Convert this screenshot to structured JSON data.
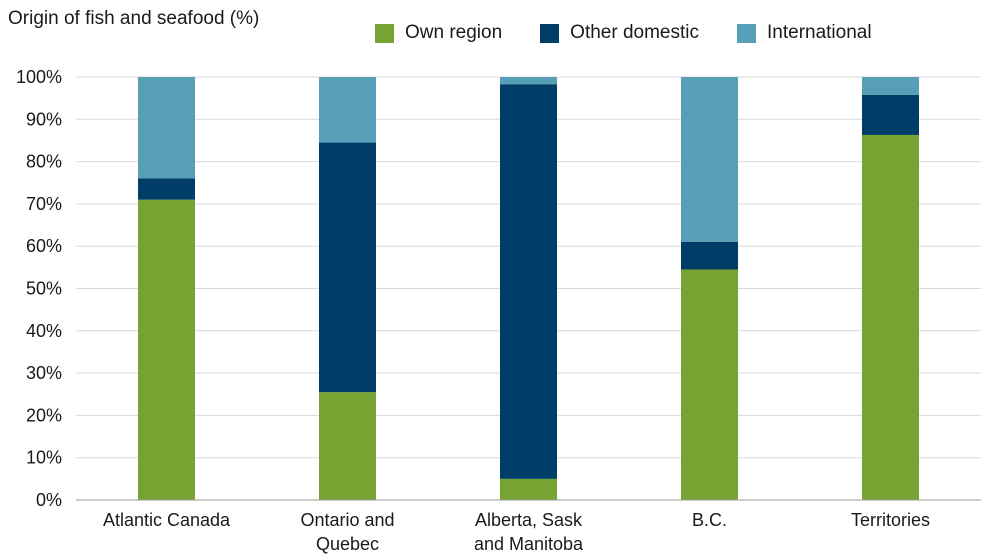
{
  "chart_data": {
    "type": "bar",
    "stacked": true,
    "title": "Origin of fish and seafood (%)",
    "categories": [
      [
        "Atlantic Canada"
      ],
      [
        "Ontario and",
        "Quebec"
      ],
      [
        "Alberta, Sask",
        "and Manitoba"
      ],
      [
        "B.C."
      ],
      [
        "Territories"
      ]
    ],
    "series": [
      {
        "name": "Own region",
        "color": "#76a332",
        "values": [
          71,
          25.5,
          5,
          54.5,
          86.3
        ]
      },
      {
        "name": "Other domestic",
        "color": "#003d69",
        "values": [
          5,
          59,
          93.3,
          6.5,
          9.5
        ]
      },
      {
        "name": "International",
        "color": "#569fb7",
        "values": [
          24,
          15.5,
          1.7,
          39,
          4.2
        ]
      }
    ],
    "ylim": [
      0,
      100
    ],
    "yticks": [
      "0%",
      "10%",
      "20%",
      "30%",
      "40%",
      "50%",
      "60%",
      "70%",
      "80%",
      "90%",
      "100%"
    ],
    "grid": true,
    "legend_position": "top"
  }
}
